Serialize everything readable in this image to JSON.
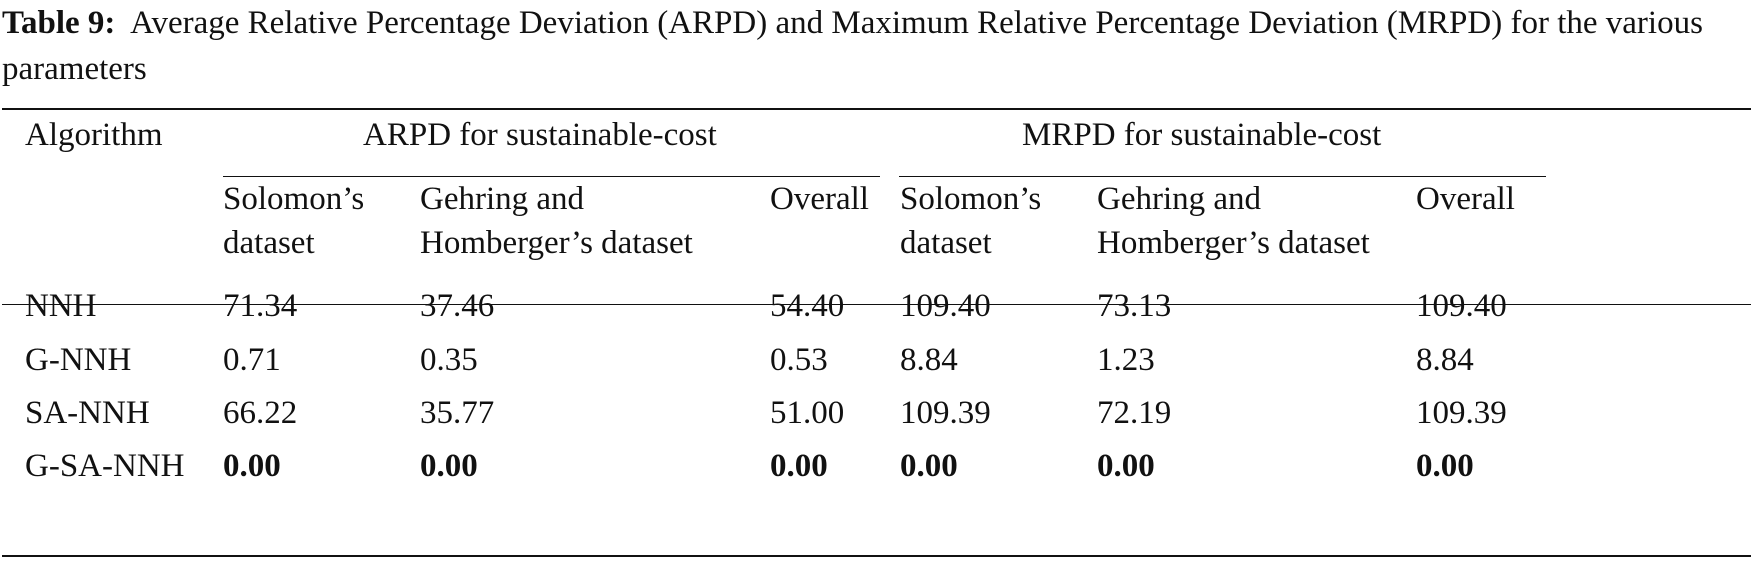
{
  "caption": {
    "label": "Table 9:",
    "text": "Average Relative Percentage Deviation (ARPD) and Maximum Relative Percentage Deviation (MRPD) for the various parameters"
  },
  "table": {
    "header": {
      "algorithm": "Algorithm",
      "group_arpd": "ARPD for sustainable-cost",
      "group_mrpd": "MRPD for sustainable-cost",
      "arpd_solomon": [
        "Solomon’s",
        "dataset"
      ],
      "arpd_gehring": [
        "Gehring and",
        "Homberger’s dataset"
      ],
      "arpd_overall": "Overall",
      "mrpd_solomon": [
        "Solomon’s",
        "dataset"
      ],
      "mrpd_gehring": [
        "Gehring and",
        "Homberger’s dataset"
      ],
      "mrpd_overall": "Overall"
    },
    "rows": [
      {
        "algorithm": "NNH",
        "values": [
          "71.34",
          "37.46",
          "54.40",
          "109.40",
          "73.13",
          "109.40"
        ],
        "bold": false
      },
      {
        "algorithm": "G-NNH",
        "values": [
          "0.71",
          "0.35",
          "0.53",
          "8.84",
          "1.23",
          "8.84"
        ],
        "bold": false
      },
      {
        "algorithm": "SA-NNH",
        "values": [
          "66.22",
          "35.77",
          "51.00",
          "109.39",
          "72.19",
          "109.39"
        ],
        "bold": false
      },
      {
        "algorithm": "G-SA-NNH",
        "values": [
          "0.00",
          "0.00",
          "0.00",
          "0.00",
          "0.00",
          "0.00"
        ],
        "bold": true
      }
    ]
  }
}
